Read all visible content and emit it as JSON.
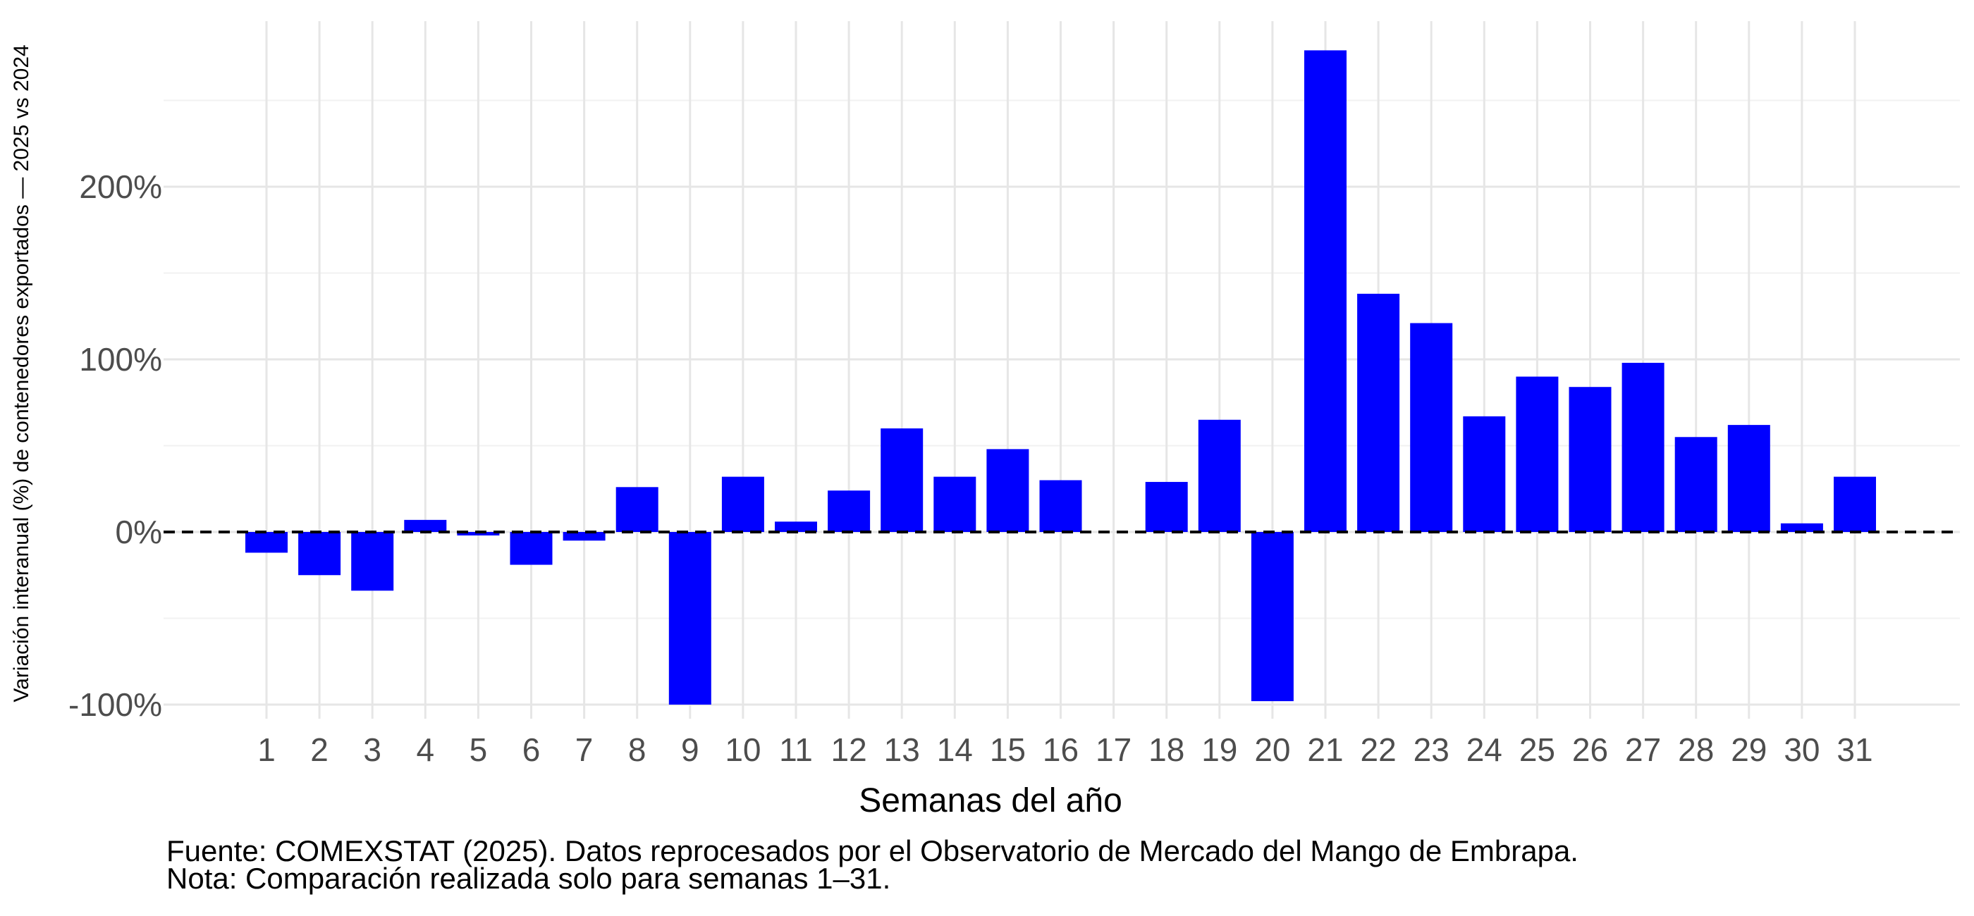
{
  "chart_data": {
    "type": "bar",
    "xlabel": "Semanas del año",
    "ylabel": "Variación interanual (%) de contenedores exportados — 2025 vs 2024",
    "categories": [
      "1",
      "2",
      "3",
      "4",
      "5",
      "6",
      "7",
      "8",
      "9",
      "10",
      "11",
      "12",
      "13",
      "14",
      "15",
      "16",
      "17",
      "18",
      "19",
      "20",
      "21",
      "22",
      "23",
      "24",
      "25",
      "26",
      "27",
      "28",
      "29",
      "30",
      "31"
    ],
    "values": [
      -12,
      -25,
      -34,
      7,
      -2,
      -19,
      -5,
      26,
      -100,
      32,
      6,
      24,
      60,
      32,
      48,
      30,
      null,
      29,
      65,
      -98,
      279,
      138,
      121,
      67,
      90,
      84,
      98,
      55,
      62,
      5,
      32
    ],
    "ylim": [
      -105,
      297
    ],
    "yticks": [
      -100,
      0,
      100,
      200
    ],
    "ytick_labels": [
      "-100%",
      "0%",
      "100%",
      "200%"
    ],
    "bar_color": "#0000ff",
    "reference_line": {
      "y": 0,
      "style": "dashed",
      "color": "#000000"
    },
    "grid": true,
    "legend": "none"
  },
  "caption": {
    "source": "Fuente: COMEXSTAT (2025). Datos reprocesados por el Observatorio de Mercado del Mango de Embrapa.",
    "note": "Nota: Comparación realizada solo para semanas 1–31."
  }
}
